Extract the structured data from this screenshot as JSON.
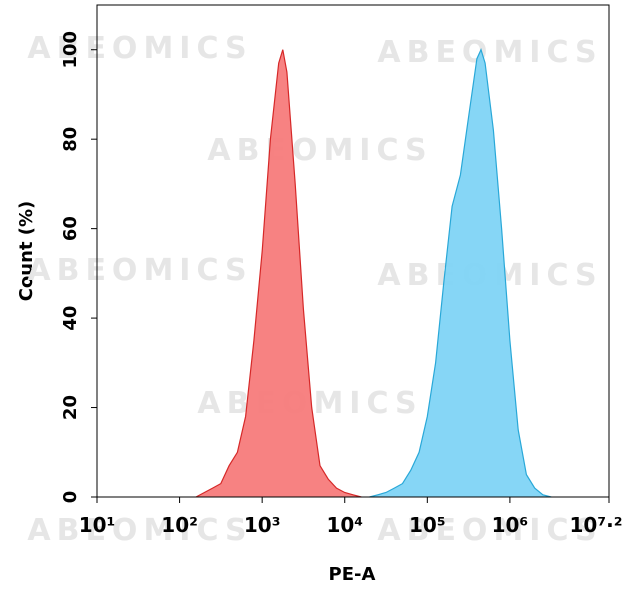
{
  "chart_data": {
    "type": "area",
    "xlabel": "PE-A",
    "ylabel": "Count  (%)",
    "watermark": "ABEOMICS",
    "xscale": "log",
    "xlim": [
      10,
      15848932
    ],
    "ylim": [
      0,
      110
    ],
    "xticks": [
      {
        "value": 10,
        "label": "10¹"
      },
      {
        "value": 100,
        "label": "10²"
      },
      {
        "value": 1000,
        "label": "10³"
      },
      {
        "value": 10000,
        "label": "10⁴"
      },
      {
        "value": 100000,
        "label": "10⁵"
      },
      {
        "value": 1000000,
        "label": "10⁶"
      },
      {
        "value": 15848932,
        "label": "10⁷·²"
      }
    ],
    "yticks": [
      0,
      20,
      40,
      60,
      80,
      100
    ],
    "grid": false,
    "series": [
      {
        "color": "#f77b7b",
        "line_color": "#d62828",
        "x": [
          158,
          200,
          251,
          316,
          398,
          501,
          631,
          794,
          1000,
          1259,
          1585,
          1778,
          1995,
          2512,
          3162,
          3981,
          5012,
          6310,
          7943,
          10000,
          12589,
          15849
        ],
        "values": [
          0,
          1,
          2,
          3,
          7,
          10,
          18,
          35,
          55,
          80,
          97,
          100,
          95,
          70,
          42,
          20,
          7,
          4,
          2,
          1,
          0.5,
          0
        ]
      },
      {
        "color": "#7fd4f5",
        "line_color": "#29a8d8",
        "x": [
          19953,
          25119,
          31623,
          39811,
          50119,
          63096,
          79433,
          100000,
          125893,
          158489,
          199526,
          251189,
          316228,
          398107,
          446684,
          501187,
          630957,
          794328,
          1000000,
          1258925,
          1584893,
          1995262,
          2511886,
          3162278
        ],
        "values": [
          0,
          0.5,
          1,
          2,
          3,
          6,
          10,
          18,
          30,
          48,
          65,
          72,
          85,
          98,
          100,
          97,
          82,
          60,
          35,
          15,
          5,
          2,
          0.5,
          0
        ]
      }
    ]
  }
}
